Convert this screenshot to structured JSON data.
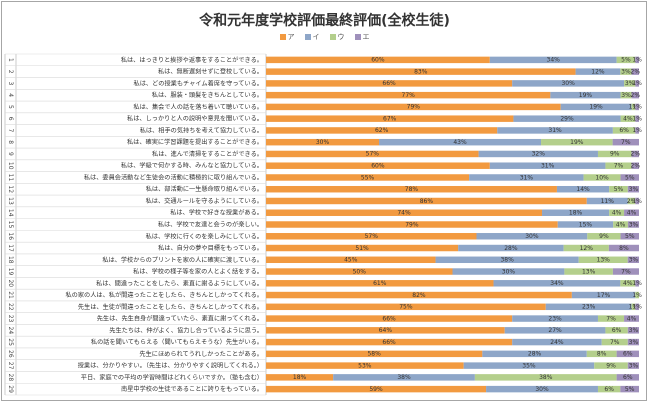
{
  "chart_data": {
    "type": "bar",
    "stacked": true,
    "orientation": "horizontal",
    "percent_stacked": true,
    "title": "令和元年度学校評価最終評価(全校生徒)",
    "legend_position": "top",
    "grid": false,
    "series": [
      {
        "name": "ア",
        "color": "#f29a40",
        "values": [
          60,
          83,
          66,
          77,
          79,
          67,
          62,
          30,
          57,
          60,
          55,
          78,
          86,
          74,
          79,
          57,
          51,
          45,
          50,
          61,
          82,
          75,
          66,
          64,
          66,
          58,
          53,
          18,
          59
        ]
      },
      {
        "name": "イ",
        "color": "#8ea6c8",
        "values": [
          34,
          12,
          30,
          19,
          19,
          29,
          31,
          43,
          32,
          31,
          31,
          14,
          11,
          18,
          15,
          30,
          28,
          38,
          30,
          34,
          17,
          23,
          23,
          27,
          24,
          28,
          35,
          38,
          30
        ]
      },
      {
        "name": "ウ",
        "color": "#b4cf8c",
        "values": [
          5,
          3,
          3,
          3,
          1,
          4,
          6,
          19,
          9,
          7,
          10,
          5,
          2,
          4,
          4,
          9,
          12,
          13,
          13,
          4,
          1,
          1,
          7,
          6,
          7,
          8,
          9,
          38,
          6
        ]
      },
      {
        "name": "エ",
        "color": "#9f90bb",
        "values": [
          1,
          2,
          1,
          2,
          1,
          1,
          1,
          7,
          2,
          2,
          5,
          3,
          1,
          4,
          3,
          5,
          8,
          3,
          7,
          1,
          0,
          1,
          4,
          3,
          3,
          6,
          3,
          6,
          5
        ]
      }
    ],
    "categories": [
      {
        "num": "1",
        "label": "私は、はっきりと挨拶や返事をすることができる。"
      },
      {
        "num": "2",
        "label": "私は、無断遅刻せずに登校している。"
      },
      {
        "num": "3",
        "label": "私は、どの授業もチャイム着席を守っている。"
      },
      {
        "num": "4",
        "label": "私は、服装・頭髪をきちんとしている。"
      },
      {
        "num": "5",
        "label": "私は、集会で人の話を落ち着いて聴いている。"
      },
      {
        "num": "6",
        "label": "私は、しっかりと人の説明や意見を聞いている。"
      },
      {
        "num": "7",
        "label": "私は、相手の気持ちを考えて協力している。"
      },
      {
        "num": "8",
        "label": "私は、確実に学習課題を提出することができる。"
      },
      {
        "num": "9",
        "label": "私は、進んで清掃をすることができる。"
      },
      {
        "num": "10",
        "label": "私は、学級で何かする時、みんなと協力している。"
      },
      {
        "num": "11",
        "label": "私は、委員会活動など生徒会の活動に積極的に取り組んでいる。"
      },
      {
        "num": "12",
        "label": "私は、部活動に一生懸命取り組んでいる。"
      },
      {
        "num": "13",
        "label": "私は、交通ルールを守るようにしている。"
      },
      {
        "num": "14",
        "label": "私は、学校で好きな授業がある。"
      },
      {
        "num": "15",
        "label": "私は、学校で友達と会うのが楽しい。"
      },
      {
        "num": "16",
        "label": "私は、学校に行くのを楽しみにしている。"
      },
      {
        "num": "17",
        "label": "私は、自分の夢や目標をもっている。"
      },
      {
        "num": "18",
        "label": "私は、学校からのプリントを家の人に確実に渡している。"
      },
      {
        "num": "19",
        "label": "私は、学校の様子等を家の人とよく話をする。"
      },
      {
        "num": "20",
        "label": "私は、間違ったことをしたら、素直に謝るようにしている。"
      },
      {
        "num": "21",
        "label": "私の家の人は、私が間違ったことをしたら、きちんとしかってくれる。"
      },
      {
        "num": "22",
        "label": "先生は、生徒が間違ったことをしたら、きちんとしかってくれる。"
      },
      {
        "num": "23",
        "label": "先生は、先生自身が間違っていたら、素直に謝ってくれる。"
      },
      {
        "num": "24",
        "label": "先生たちは、仲がよく、協力し合っているように思う。"
      },
      {
        "num": "25",
        "label": "私の話を聞いてもらえる（聞いてもらえそうな）先生がいる。"
      },
      {
        "num": "26",
        "label": "先生にほめられてうれしかったことがある。"
      },
      {
        "num": "27",
        "label": "授業は、分かりやすい。（先生は、分かりやすく説明してくれる。）"
      },
      {
        "num": "28",
        "label": "平日、家庭での平均の学習時間はどれくらいですか。（塾も含む）"
      },
      {
        "num": "29",
        "label": "南星中学校の生徒であることに誇りをもっている。"
      }
    ]
  }
}
